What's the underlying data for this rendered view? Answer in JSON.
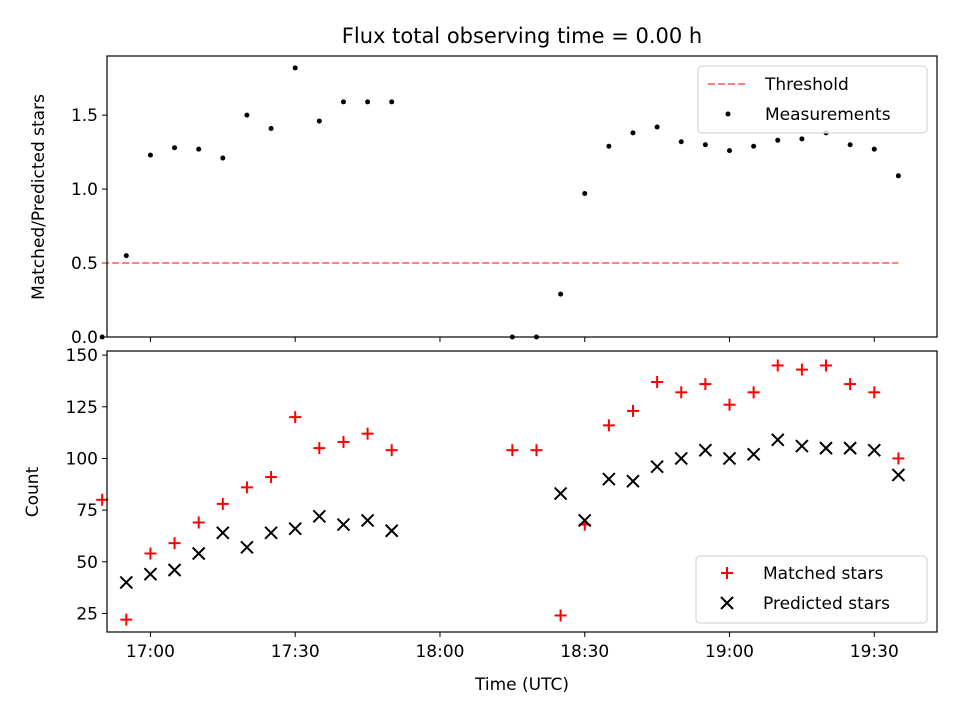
{
  "chart_data": [
    {
      "type": "scatter",
      "title": "Flux total observing time = 0.00 h",
      "ylabel": "Matched/Predicted stars",
      "xlim": [
        "16:51",
        "19:43"
      ],
      "ylim": [
        0,
        1.9
      ],
      "yticks": [
        0.0,
        0.5,
        1.0,
        1.5
      ],
      "ytick_labels": [
        "0.0",
        "0.5",
        "1.0",
        "1.5"
      ],
      "xticks": [
        "17:00",
        "17:30",
        "18:00",
        "18:30",
        "19:00",
        "19:30"
      ],
      "legend": "top-right",
      "threshold": {
        "name": "Threshold",
        "y": 0.5,
        "x_range": [
          "16:50",
          "19:35"
        ],
        "color": "#ff8080"
      },
      "series": [
        {
          "name": "Measurements",
          "color": "#000000",
          "points": [
            [
              "16:50",
              0.0
            ],
            [
              "16:55",
              0.55
            ],
            [
              "17:00",
              1.23
            ],
            [
              "17:05",
              1.28
            ],
            [
              "17:10",
              1.27
            ],
            [
              "17:15",
              1.21
            ],
            [
              "17:20",
              1.5
            ],
            [
              "17:25",
              1.41
            ],
            [
              "17:30",
              1.82
            ],
            [
              "17:35",
              1.46
            ],
            [
              "17:40",
              1.59
            ],
            [
              "17:45",
              1.59
            ],
            [
              "17:50",
              1.59
            ],
            [
              "18:15",
              0.0
            ],
            [
              "18:20",
              0.0
            ],
            [
              "18:25",
              0.29
            ],
            [
              "18:30",
              0.97
            ],
            [
              "18:35",
              1.29
            ],
            [
              "18:40",
              1.38
            ],
            [
              "18:45",
              1.42
            ],
            [
              "18:50",
              1.32
            ],
            [
              "18:55",
              1.3
            ],
            [
              "19:00",
              1.26
            ],
            [
              "19:05",
              1.29
            ],
            [
              "19:10",
              1.33
            ],
            [
              "19:15",
              1.34
            ],
            [
              "19:20",
              1.38
            ],
            [
              "19:25",
              1.3
            ],
            [
              "19:30",
              1.27
            ],
            [
              "19:35",
              1.09
            ]
          ]
        }
      ]
    },
    {
      "type": "scatter",
      "xlabel": "Time (UTC)",
      "ylabel": "Count",
      "xlim": [
        "16:51",
        "19:43"
      ],
      "ylim": [
        16,
        152
      ],
      "yticks": [
        25,
        50,
        75,
        100,
        125,
        150
      ],
      "ytick_labels": [
        "25",
        "50",
        "75",
        "100",
        "125",
        "150"
      ],
      "xticks": [
        "17:00",
        "17:30",
        "18:00",
        "18:30",
        "19:00",
        "19:30"
      ],
      "xtick_labels": [
        "17:00",
        "17:30",
        "18:00",
        "18:30",
        "19:00",
        "19:30"
      ],
      "legend": "bottom-right",
      "series": [
        {
          "name": "Matched stars",
          "marker": "plus",
          "color": "#ff0000",
          "points": [
            [
              "16:50",
              80
            ],
            [
              "16:55",
              22
            ],
            [
              "17:00",
              54
            ],
            [
              "17:05",
              59
            ],
            [
              "17:10",
              69
            ],
            [
              "17:15",
              78
            ],
            [
              "17:20",
              86
            ],
            [
              "17:25",
              91
            ],
            [
              "17:30",
              120
            ],
            [
              "17:35",
              105
            ],
            [
              "17:40",
              108
            ],
            [
              "17:45",
              112
            ],
            [
              "17:50",
              104
            ],
            [
              "18:15",
              104
            ],
            [
              "18:20",
              104
            ],
            [
              "18:25",
              24
            ],
            [
              "18:30",
              68
            ],
            [
              "18:35",
              116
            ],
            [
              "18:40",
              123
            ],
            [
              "18:45",
              137
            ],
            [
              "18:50",
              132
            ],
            [
              "18:55",
              136
            ],
            [
              "19:00",
              126
            ],
            [
              "19:05",
              132
            ],
            [
              "19:10",
              145
            ],
            [
              "19:15",
              143
            ],
            [
              "19:20",
              145
            ],
            [
              "19:25",
              136
            ],
            [
              "19:30",
              132
            ],
            [
              "19:35",
              100
            ]
          ]
        },
        {
          "name": "Predicted stars",
          "marker": "x",
          "color": "#000000",
          "points": [
            [
              "16:55",
              40
            ],
            [
              "17:00",
              44
            ],
            [
              "17:05",
              46
            ],
            [
              "17:10",
              54
            ],
            [
              "17:15",
              64
            ],
            [
              "17:20",
              57
            ],
            [
              "17:25",
              64
            ],
            [
              "17:30",
              66
            ],
            [
              "17:35",
              72
            ],
            [
              "17:40",
              68
            ],
            [
              "17:45",
              70
            ],
            [
              "17:50",
              65
            ],
            [
              "18:25",
              83
            ],
            [
              "18:30",
              70
            ],
            [
              "18:35",
              90
            ],
            [
              "18:40",
              89
            ],
            [
              "18:45",
              96
            ],
            [
              "18:50",
              100
            ],
            [
              "18:55",
              104
            ],
            [
              "19:00",
              100
            ],
            [
              "19:05",
              102
            ],
            [
              "19:10",
              109
            ],
            [
              "19:15",
              106
            ],
            [
              "19:20",
              105
            ],
            [
              "19:25",
              105
            ],
            [
              "19:30",
              104
            ],
            [
              "19:35",
              92
            ]
          ]
        }
      ]
    }
  ]
}
